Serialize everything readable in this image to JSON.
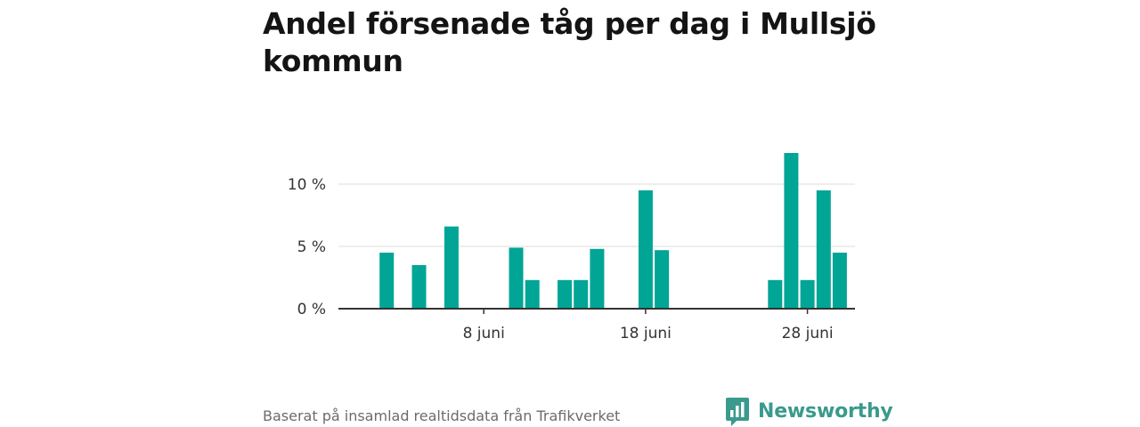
{
  "chart_data": {
    "type": "bar",
    "title": "Andel försenade tåg per dag i Mullsjö kommun",
    "xlabel": "",
    "ylabel": "",
    "x": [
      "1 juni",
      "2 juni",
      "3 juni",
      "4 juni",
      "5 juni",
      "6 juni",
      "7 juni",
      "8 juni",
      "9 juni",
      "10 juni",
      "11 juni",
      "12 juni",
      "13 juni",
      "14 juni",
      "15 juni",
      "16 juni",
      "17 juni",
      "18 juni",
      "19 juni",
      "20 juni",
      "21 juni",
      "22 juni",
      "23 juni",
      "24 juni",
      "25 juni",
      "26 juni",
      "27 juni",
      "28 juni",
      "29 juni",
      "30 juni"
    ],
    "values": [
      0,
      4.5,
      0,
      3.5,
      0,
      6.6,
      0,
      0,
      0,
      4.9,
      2.3,
      0,
      2.3,
      2.3,
      4.8,
      0,
      0,
      9.5,
      4.7,
      0,
      0,
      0,
      0,
      0,
      0,
      2.3,
      12.5,
      2.3,
      9.5,
      4.5
    ],
    "ylim": [
      0,
      14
    ],
    "y_ticks": [
      {
        "value": 0,
        "label": "0 %"
      },
      {
        "value": 5,
        "label": "5 %"
      },
      {
        "value": 10,
        "label": "10 %"
      }
    ],
    "x_ticks": [
      {
        "value": "8 juni",
        "label": "8 juni"
      },
      {
        "value": "18 juni",
        "label": "18 juni"
      },
      {
        "value": "28 juni",
        "label": "28 juni"
      }
    ],
    "grid": true,
    "bar_color": "#00a596",
    "grid_color": "#dcdcdc",
    "axis_color": "#333333"
  },
  "footer": {
    "source": "Baserat på insamlad realtidsdata från Trafikverket",
    "brand": "Newsworthy",
    "brand_color": "#3a9a8c",
    "brand_icon": "newsworthy-logo-icon"
  }
}
